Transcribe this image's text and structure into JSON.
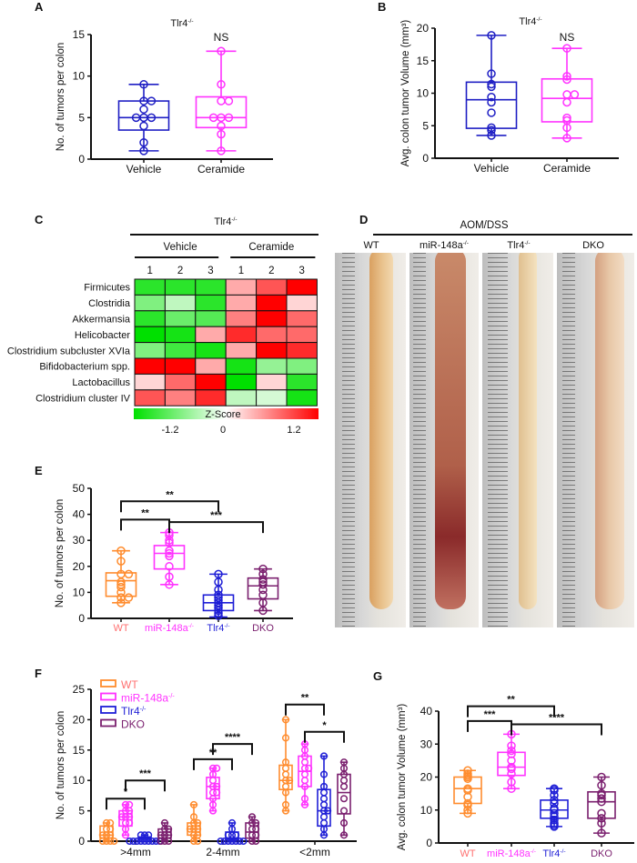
{
  "panel_labels": [
    "A",
    "B",
    "C",
    "D",
    "E",
    "F",
    "G"
  ],
  "colors": {
    "vehicle": "#1f1fc4",
    "ceramide": "#ff33ff",
    "wt": "#ff8c2e",
    "wt_label": "#ff7070",
    "mir": "#ff33ff",
    "tlr4": "#1f1fd6",
    "dko": "#7a1f6e",
    "heat_low": "#00e000",
    "heat_mid": "#ffffff",
    "heat_high": "#ff0000"
  },
  "chart_data": [
    {
      "panel": "A",
      "type": "box",
      "title": {
        "base": "Tlr4",
        "sup": "-/-"
      },
      "annotation": "NS",
      "ylabel": "No. of tumors per colon",
      "ylim": [
        0,
        15
      ],
      "yticks": [
        0,
        5,
        10,
        15
      ],
      "categories": [
        "Vehicle",
        "Ceramide"
      ],
      "series": [
        {
          "color_key": "vehicle",
          "min": 1,
          "q1": 3.5,
          "median": 5,
          "q3": 7,
          "max": 9,
          "points": [
            9,
            7,
            7,
            6,
            5,
            5,
            5,
            4,
            2,
            1
          ]
        },
        {
          "color_key": "ceramide",
          "min": 1,
          "q1": 3.8,
          "median": 5,
          "q3": 7.5,
          "max": 13,
          "points": [
            13,
            9,
            7,
            7,
            5,
            5,
            5,
            4,
            3,
            1
          ]
        }
      ]
    },
    {
      "panel": "B",
      "type": "box",
      "title": {
        "base": "Tlr4",
        "sup": "-/-"
      },
      "annotation": "NS",
      "ylabel": "Avg. colon tumor Volume (mm³)",
      "ylim": [
        0,
        20
      ],
      "yticks": [
        0,
        5,
        10,
        15,
        20
      ],
      "categories": [
        "Vehicle",
        "Ceramide"
      ],
      "series": [
        {
          "color_key": "vehicle",
          "min": 3.5,
          "q1": 4.6,
          "median": 9,
          "q3": 11.7,
          "max": 18.9,
          "points": [
            18.9,
            13,
            11.4,
            11,
            9.4,
            8.6,
            7,
            4.7,
            4.3,
            3.5
          ]
        },
        {
          "color_key": "ceramide",
          "min": 3.1,
          "q1": 5.6,
          "median": 9.2,
          "q3": 12.2,
          "max": 16.9,
          "points": [
            16.9,
            12.6,
            12.1,
            9.8,
            9.8,
            8.6,
            6.2,
            5.8,
            4.7,
            3.1
          ]
        }
      ]
    },
    {
      "panel": "C",
      "type": "heatmap",
      "title": {
        "base": "Tlr4",
        "sup": "-/-"
      },
      "groups": [
        "Vehicle",
        "Ceramide"
      ],
      "columns": [
        "1",
        "2",
        "3",
        "1",
        "2",
        "3"
      ],
      "rows": [
        "Firmicutes",
        "Clostridia",
        "Akkermansia",
        "Helicobacter",
        "Clostridium subcluster XVIa",
        "Bifidobacterium spp.",
        "Lactobacillus",
        "Clostridium cluster IV"
      ],
      "values": [
        [
          -1.0,
          -1.0,
          -1.0,
          0.4,
          0.8,
          1.2
        ],
        [
          -0.6,
          -0.3,
          -1.0,
          0.4,
          1.2,
          0.2
        ],
        [
          -1.0,
          -0.7,
          -0.8,
          0.6,
          1.2,
          0.7
        ],
        [
          -1.2,
          -1.1,
          0.4,
          1.0,
          0.7,
          0.7
        ],
        [
          -0.6,
          -0.9,
          -1.1,
          0.4,
          1.2,
          1.0
        ],
        [
          1.2,
          1.2,
          0.4,
          -1.1,
          -0.5,
          -0.6
        ],
        [
          0.2,
          0.7,
          1.2,
          -1.2,
          0.2,
          -1.0
        ],
        [
          0.8,
          0.6,
          1.0,
          -0.3,
          -0.2,
          -1.1
        ]
      ],
      "colorbar": {
        "label": "Z-Score",
        "ticks": [
          "-1.2",
          "0",
          "1.2"
        ],
        "range": [
          -1.2,
          1.2
        ]
      }
    },
    {
      "panel": "E",
      "type": "box",
      "ylabel": "No. of tumors per colon",
      "ylim": [
        0,
        50
      ],
      "yticks": [
        0,
        10,
        20,
        30,
        40,
        50
      ],
      "categories": [
        "WT",
        "miR-148a-/-",
        "Tlr4-/-",
        "DKO"
      ],
      "category_labels": [
        {
          "base": "WT",
          "sup": ""
        },
        {
          "base": "miR-148a",
          "sup": "-/-"
        },
        {
          "base": "Tlr4",
          "sup": "-/-"
        },
        {
          "base": "DKO",
          "sup": ""
        }
      ],
      "series": [
        {
          "color_key": "wt",
          "min": 6,
          "q1": 8.5,
          "median": 14.5,
          "q3": 17.5,
          "max": 26,
          "points": [
            26,
            22,
            17,
            17,
            14,
            13,
            12,
            10,
            8,
            8,
            6
          ]
        },
        {
          "color_key": "mir",
          "min": 13,
          "q1": 19,
          "median": 25,
          "q3": 28,
          "max": 33,
          "points": [
            33,
            32,
            30,
            29,
            26,
            25,
            24,
            20,
            16,
            13
          ]
        },
        {
          "color_key": "tlr4",
          "min": 0.5,
          "q1": 3,
          "median": 6,
          "q3": 9,
          "max": 17,
          "points": [
            17,
            14,
            11,
            9,
            8,
            7,
            6,
            5,
            4,
            3,
            2,
            1
          ]
        },
        {
          "color_key": "dko",
          "min": 3,
          "q1": 7.5,
          "median": 12.5,
          "q3": 15.5,
          "max": 19,
          "points": [
            19,
            17,
            15,
            14,
            13,
            11,
            9,
            6,
            3
          ]
        }
      ],
      "significance": [
        {
          "from": 0,
          "to": 2,
          "y": 45,
          "label": "**"
        },
        {
          "from": 0,
          "to": 1,
          "y": 38,
          "label": "**"
        },
        {
          "from": 1,
          "to": 3,
          "y": 37,
          "label": "***"
        }
      ]
    },
    {
      "panel": "F",
      "type": "grouped_box",
      "ylabel": "No. of tumors per colon",
      "ylim": [
        0,
        25
      ],
      "yticks": [
        0,
        5,
        10,
        15,
        20,
        25
      ],
      "categories": [
        ">4mm",
        "2-4mm",
        "<2mm"
      ],
      "legend": {
        "position": "top-left",
        "entries": [
          {
            "base": "WT",
            "sup": "",
            "color_key": "wt",
            "text_color_key": "wt_label"
          },
          {
            "base": "miR-148a",
            "sup": "-/-",
            "color_key": "mir",
            "text_color_key": "mir"
          },
          {
            "base": "Tlr4",
            "sup": "-/-",
            "color_key": "tlr4",
            "text_color_key": "tlr4"
          },
          {
            "base": "DKO",
            "sup": "",
            "color_key": "dko",
            "text_color_key": "dko"
          }
        ]
      },
      "groups": [
        {
          "series": [
            {
              "min": 0,
              "q1": 0.5,
              "median": 1,
              "q3": 2.5,
              "max": 3,
              "points": [
                3,
                3,
                2,
                2,
                1,
                1,
                1,
                0,
                0,
                0,
                0
              ]
            },
            {
              "min": 1,
              "q1": 2.5,
              "median": 4,
              "q3": 5,
              "max": 6,
              "points": [
                6,
                6,
                5,
                5,
                4,
                4,
                4,
                3,
                3,
                2,
                1
              ]
            },
            {
              "min": 0,
              "q1": 0,
              "median": 0.3,
              "q3": 0.7,
              "max": 1,
              "points": [
                1,
                1,
                1,
                0,
                0,
                0,
                0,
                0,
                0,
                0,
                0,
                0
              ]
            },
            {
              "min": 0,
              "q1": 0.5,
              "median": 1,
              "q3": 2,
              "max": 3,
              "points": [
                3,
                2,
                2,
                1,
                1,
                1,
                0,
                0,
                0
              ]
            }
          ],
          "significance": [
            {
              "from": 0,
              "to": 2,
              "y": 7,
              "label": "*"
            },
            {
              "from": 1,
              "to": 3,
              "y": 10,
              "label": "***"
            }
          ]
        },
        {
          "series": [
            {
              "min": 0,
              "q1": 1,
              "median": 2,
              "q3": 3,
              "max": 6,
              "points": [
                6,
                4,
                3,
                3,
                2,
                2,
                2,
                1,
                1,
                0,
                0
              ]
            },
            {
              "min": 5,
              "q1": 7,
              "median": 9,
              "q3": 10.5,
              "max": 12,
              "points": [
                12,
                12,
                11,
                10,
                9,
                9,
                8,
                8,
                7,
                6,
                5
              ]
            },
            {
              "min": 0,
              "q1": 0.3,
              "median": 0.5,
              "q3": 1.5,
              "max": 3,
              "points": [
                3,
                2,
                1,
                1,
                1,
                0,
                0,
                0,
                0,
                0,
                0,
                0
              ]
            },
            {
              "min": 0,
              "q1": 0.5,
              "median": 1.5,
              "q3": 3,
              "max": 4,
              "points": [
                4,
                3,
                3,
                2,
                2,
                1,
                1,
                0,
                0
              ]
            }
          ],
          "significance": [
            {
              "from": 0,
              "to": 2,
              "y": 13.5,
              "label": "**"
            },
            {
              "from": 1,
              "to": 3,
              "y": 16,
              "label": "****"
            }
          ]
        },
        {
          "series": [
            {
              "min": 5,
              "q1": 8.5,
              "median": 10,
              "q3": 12.5,
              "max": 20,
              "points": [
                20,
                17,
                13,
                12,
                11,
                10,
                10,
                9,
                8,
                6,
                5
              ]
            },
            {
              "min": 6,
              "q1": 9,
              "median": 11.5,
              "q3": 14,
              "max": 16,
              "points": [
                16,
                15,
                14,
                13,
                12,
                12,
                11,
                10,
                9,
                7,
                6
              ]
            },
            {
              "min": 1,
              "q1": 2.5,
              "median": 5,
              "q3": 8.5,
              "max": 14,
              "points": [
                14,
                11,
                9,
                8,
                7,
                6,
                5,
                5,
                4,
                3,
                2,
                1
              ]
            },
            {
              "min": 1,
              "q1": 4.5,
              "median": 8,
              "q3": 11,
              "max": 13,
              "points": [
                13,
                12,
                11,
                10,
                9,
                7,
                5,
                3,
                1
              ]
            }
          ],
          "significance": [
            {
              "from": 0,
              "to": 2,
              "y": 22.5,
              "label": "**"
            },
            {
              "from": 1,
              "to": 3,
              "y": 18,
              "label": "*"
            }
          ]
        }
      ]
    },
    {
      "panel": "G",
      "type": "box",
      "ylabel": "Avg. colon tumor Volume (mm³)",
      "ylim": [
        0,
        40
      ],
      "yticks": [
        0,
        10,
        20,
        30,
        40
      ],
      "categories": [
        "WT",
        "miR-148a-/-",
        "Tlr4-/-",
        "DKO"
      ],
      "category_labels": [
        {
          "base": "WT",
          "sup": ""
        },
        {
          "base": "miR-148a",
          "sup": "-/-"
        },
        {
          "base": "Tlr4",
          "sup": "-/-"
        },
        {
          "base": "DKO",
          "sup": ""
        }
      ],
      "series": [
        {
          "color_key": "wt",
          "min": 9,
          "q1": 12,
          "median": 16.5,
          "q3": 20,
          "max": 22,
          "points": [
            22,
            21,
            20.5,
            20,
            19.5,
            16.5,
            16,
            14,
            12,
            11.5,
            10,
            9
          ]
        },
        {
          "color_key": "mir",
          "min": 16.5,
          "q1": 20.5,
          "median": 23,
          "q3": 27.5,
          "max": 33,
          "points": [
            33,
            29.5,
            28,
            27,
            25,
            23,
            22.5,
            21,
            18.5,
            16.5
          ]
        },
        {
          "color_key": "tlr4",
          "min": 5,
          "q1": 7.5,
          "median": 10,
          "q3": 13,
          "max": 16.5,
          "points": [
            16.5,
            16,
            14.5,
            13,
            12,
            10.5,
            10,
            9,
            8,
            7,
            6,
            5.5,
            5
          ]
        },
        {
          "color_key": "dko",
          "min": 3,
          "q1": 7.5,
          "median": 12.5,
          "q3": 15.5,
          "max": 20,
          "points": [
            20,
            17.5,
            15,
            14.5,
            13.5,
            12.5,
            9,
            7.5,
            6,
            3
          ]
        }
      ],
      "significance": [
        {
          "from": 0,
          "to": 2,
          "y": 41.5,
          "label": "**"
        },
        {
          "from": 0,
          "to": 1,
          "y": 37,
          "label": "***"
        },
        {
          "from": 1,
          "to": 3,
          "y": 36,
          "label": "****"
        }
      ]
    }
  ],
  "panel_d": {
    "title": "AOM/DSS",
    "columns": [
      {
        "base": "WT",
        "sup": ""
      },
      {
        "base": "miR-148a",
        "sup": "-/-"
      },
      {
        "base": "Tlr4",
        "sup": "-/-"
      },
      {
        "base": "DKO",
        "sup": ""
      }
    ]
  }
}
